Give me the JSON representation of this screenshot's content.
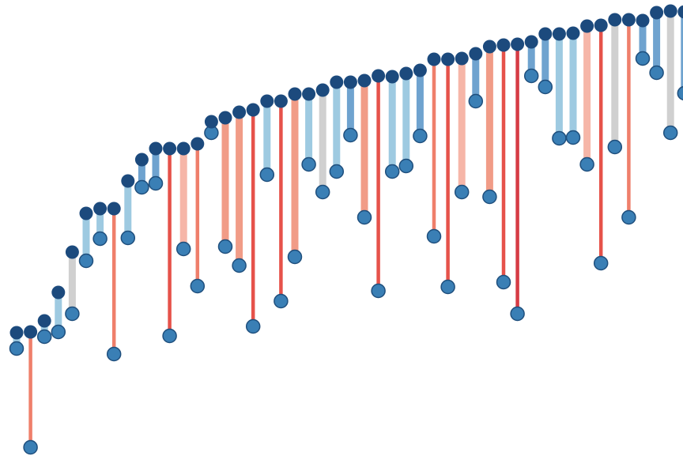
{
  "chart_data": {
    "type": "dumbbell",
    "ylim": [
      0,
      577
    ],
    "grid": false,
    "legend": "none",
    "colors": {
      "top_dot": "#1c4a7d",
      "bottom_dot": "#3a7fb5",
      "bottom_dot_stroke": "#1f4f7d"
    },
    "points": [
      {
        "index": 1,
        "top": 156,
        "bottom": 136,
        "color": "#9ecae1"
      },
      {
        "index": 2,
        "top": 157,
        "bottom": 11,
        "color": "#ef7f6b"
      },
      {
        "index": 3,
        "top": 171,
        "bottom": 151,
        "color": "#9ecae1"
      },
      {
        "index": 4,
        "top": 207,
        "bottom": 157,
        "color": "#9ecae1"
      },
      {
        "index": 5,
        "top": 258,
        "bottom": 180,
        "color": "#d0d0d0"
      },
      {
        "index": 6,
        "top": 307,
        "bottom": 247,
        "color": "#9ecae1"
      },
      {
        "index": 7,
        "top": 313,
        "bottom": 275,
        "color": "#9ecae1"
      },
      {
        "index": 8,
        "top": 313,
        "bottom": 129,
        "color": "#ef7f6b"
      },
      {
        "index": 9,
        "top": 348,
        "bottom": 276,
        "color": "#9ecae1"
      },
      {
        "index": 10,
        "top": 375,
        "bottom": 340,
        "color": "#6fa3cf"
      },
      {
        "index": 11,
        "top": 389,
        "bottom": 345,
        "color": "#6fa3cf"
      },
      {
        "index": 12,
        "top": 389,
        "bottom": 152,
        "color": "#e6524a"
      },
      {
        "index": 13,
        "top": 389,
        "bottom": 262,
        "color": "#f6b6a8"
      },
      {
        "index": 14,
        "top": 395,
        "bottom": 215,
        "color": "#ef7f6b"
      },
      {
        "index": 15,
        "top": 423,
        "bottom": 409,
        "color": "#9ecae1"
      },
      {
        "index": 16,
        "top": 428,
        "bottom": 265,
        "color": "#f19c87"
      },
      {
        "index": 17,
        "top": 435,
        "bottom": 241,
        "color": "#f19c87"
      },
      {
        "index": 18,
        "top": 438,
        "bottom": 164,
        "color": "#e6524a"
      },
      {
        "index": 19,
        "top": 449,
        "bottom": 356,
        "color": "#9ecae1"
      },
      {
        "index": 20,
        "top": 449,
        "bottom": 196,
        "color": "#e6524a"
      },
      {
        "index": 21,
        "top": 458,
        "bottom": 252,
        "color": "#f19c87"
      },
      {
        "index": 22,
        "top": 458,
        "bottom": 369,
        "color": "#9ecae1"
      },
      {
        "index": 23,
        "top": 463,
        "bottom": 334,
        "color": "#d0d0d0"
      },
      {
        "index": 24,
        "top": 473,
        "bottom": 360,
        "color": "#9ecae1"
      },
      {
        "index": 25,
        "top": 473,
        "bottom": 406,
        "color": "#6fa3cf"
      },
      {
        "index": 26,
        "top": 475,
        "bottom": 302,
        "color": "#f19c87"
      },
      {
        "index": 27,
        "top": 481,
        "bottom": 209,
        "color": "#e6524a"
      },
      {
        "index": 28,
        "top": 480,
        "bottom": 360,
        "color": "#9ecae1"
      },
      {
        "index": 29,
        "top": 484,
        "bottom": 367,
        "color": "#9ecae1"
      },
      {
        "index": 30,
        "top": 488,
        "bottom": 405,
        "color": "#6fa3cf"
      },
      {
        "index": 31,
        "top": 502,
        "bottom": 278,
        "color": "#ef7f6b"
      },
      {
        "index": 32,
        "top": 502,
        "bottom": 214,
        "color": "#e6524a"
      },
      {
        "index": 33,
        "top": 503,
        "bottom": 334,
        "color": "#f6b6a8"
      },
      {
        "index": 34,
        "top": 509,
        "bottom": 449,
        "color": "#6fa3cf"
      },
      {
        "index": 35,
        "top": 518,
        "bottom": 328,
        "color": "#f19c87"
      },
      {
        "index": 36,
        "top": 520,
        "bottom": 220,
        "color": "#e6524a"
      },
      {
        "index": 37,
        "top": 521,
        "bottom": 180,
        "color": "#d63b44"
      },
      {
        "index": 38,
        "top": 524,
        "bottom": 481,
        "color": "#6fa3cf"
      },
      {
        "index": 39,
        "top": 534,
        "bottom": 467,
        "color": "#6fa3cf"
      },
      {
        "index": 40,
        "top": 534,
        "bottom": 402,
        "color": "#9ecae1"
      },
      {
        "index": 41,
        "top": 535,
        "bottom": 403,
        "color": "#9ecae1"
      },
      {
        "index": 42,
        "top": 544,
        "bottom": 369,
        "color": "#f6b6a8"
      },
      {
        "index": 43,
        "top": 545,
        "bottom": 244,
        "color": "#e6524a"
      },
      {
        "index": 44,
        "top": 552,
        "bottom": 391,
        "color": "#d0d0d0"
      },
      {
        "index": 45,
        "top": 552,
        "bottom": 302,
        "color": "#ef7f6b"
      },
      {
        "index": 46,
        "top": 551,
        "bottom": 503,
        "color": "#6fa3cf"
      },
      {
        "index": 47,
        "top": 561,
        "bottom": 485,
        "color": "#6fa3cf"
      },
      {
        "index": 48,
        "top": 563,
        "bottom": 409,
        "color": "#d0d0d0"
      },
      {
        "index": 49,
        "top": 562,
        "bottom": 459,
        "color": "#6fa3cf"
      }
    ]
  }
}
